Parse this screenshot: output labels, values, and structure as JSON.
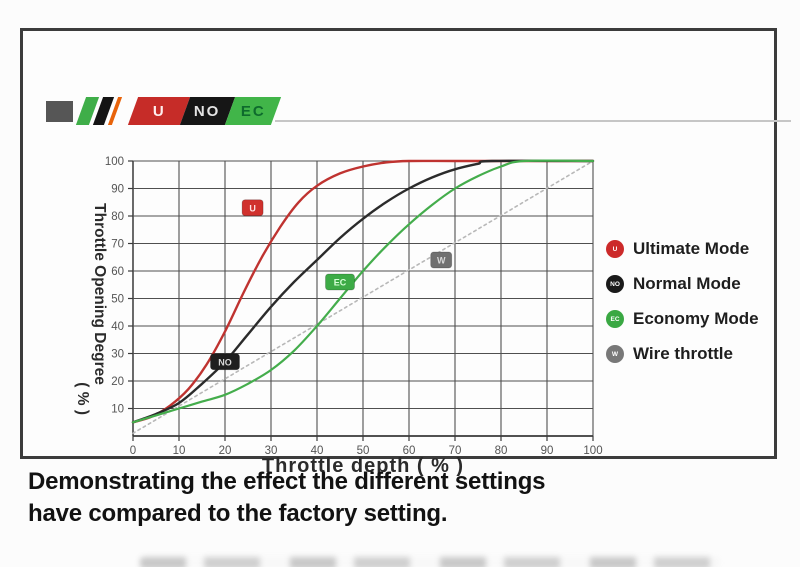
{
  "logo": {
    "badges": [
      {
        "label": "U"
      },
      {
        "label": "NO"
      },
      {
        "label": "EC"
      }
    ]
  },
  "chart_data": {
    "type": "line",
    "title": "",
    "xlabel": "Throttle depth ( % )",
    "ylabel_line1": "Throttle Opening Degree",
    "ylabel_line2": "( % )",
    "xlim": [
      0,
      100
    ],
    "ylim": [
      0,
      100
    ],
    "x_ticks": [
      0,
      10,
      20,
      30,
      40,
      50,
      60,
      70,
      80,
      90,
      100
    ],
    "y_ticks": [
      10,
      20,
      30,
      40,
      50,
      60,
      70,
      80,
      90,
      100
    ],
    "grid": true,
    "legend_position": "right",
    "series": [
      {
        "name": "Wire throttle",
        "color": "#b8b8b8",
        "dashed": true,
        "width": 1.6,
        "badge": "W",
        "badge_at": [
          67,
          64
        ],
        "badge_bg": "#707070",
        "badge_fg": "#d8d8d8",
        "x": [
          0,
          100
        ],
        "y": [
          1,
          100
        ]
      },
      {
        "name": "Ultimate Mode",
        "color": "#bf3330",
        "dashed": false,
        "width": 2.4,
        "badge": "U",
        "badge_at": [
          26,
          83
        ],
        "badge_bg": "#d0312d",
        "badge_fg": "#ffe2e2",
        "x": [
          0,
          4,
          8,
          12,
          16,
          20,
          24,
          28,
          32,
          36,
          40,
          45,
          50,
          55,
          60,
          70,
          85,
          100
        ],
        "y": [
          5,
          7,
          11,
          17,
          26,
          38,
          52,
          65,
          76,
          85,
          91,
          95.5,
          98,
          99.5,
          100,
          100,
          100,
          100
        ]
      },
      {
        "name": "Normal Mode",
        "color": "#2b2b2b",
        "dashed": false,
        "width": 2.4,
        "badge": "NO",
        "badge_at": [
          20,
          27
        ],
        "badge_bg": "#1f1f1f",
        "badge_fg": "#d8d8d8",
        "x": [
          0,
          5,
          10,
          15,
          20,
          25,
          30,
          35,
          40,
          45,
          50,
          55,
          60,
          65,
          70,
          75,
          78,
          100
        ],
        "y": [
          5,
          8,
          12,
          19,
          27,
          37,
          47,
          56,
          64,
          72,
          79,
          85,
          90,
          94,
          97,
          99,
          100,
          100
        ]
      },
      {
        "name": "Economy Mode",
        "color": "#44ad4c",
        "dashed": false,
        "width": 2.2,
        "badge": "EC",
        "badge_at": [
          45,
          56
        ],
        "badge_bg": "#3dab46",
        "badge_fg": "#d6ffd6",
        "x": [
          0,
          5,
          10,
          15,
          20,
          25,
          30,
          35,
          40,
          45,
          50,
          55,
          60,
          65,
          70,
          75,
          80,
          85,
          100
        ],
        "y": [
          5,
          7.5,
          10,
          12.5,
          15,
          19,
          24,
          31,
          40,
          50,
          60,
          69,
          77,
          84,
          90,
          94.5,
          98,
          100,
          100
        ]
      }
    ]
  },
  "legend": {
    "items": [
      {
        "label": "Ultimate Mode",
        "marker_text": "U",
        "color": "#cc2a2a"
      },
      {
        "label": "Normal Mode",
        "marker_text": "NO",
        "color": "#1a1a1a"
      },
      {
        "label": "Economy Mode",
        "marker_text": "EC",
        "color": "#3aa843"
      },
      {
        "label": "Wire throttle",
        "marker_text": "W",
        "color": "#787878"
      }
    ]
  },
  "caption": {
    "line1": "Demonstrating the effect the different settings",
    "line2": "have compared to the factory setting."
  },
  "colors": {
    "grid": "#4f4f4f",
    "axis": "#3a3a3a",
    "tick_label": "#555555",
    "panel_border": "#3c3c3c"
  }
}
